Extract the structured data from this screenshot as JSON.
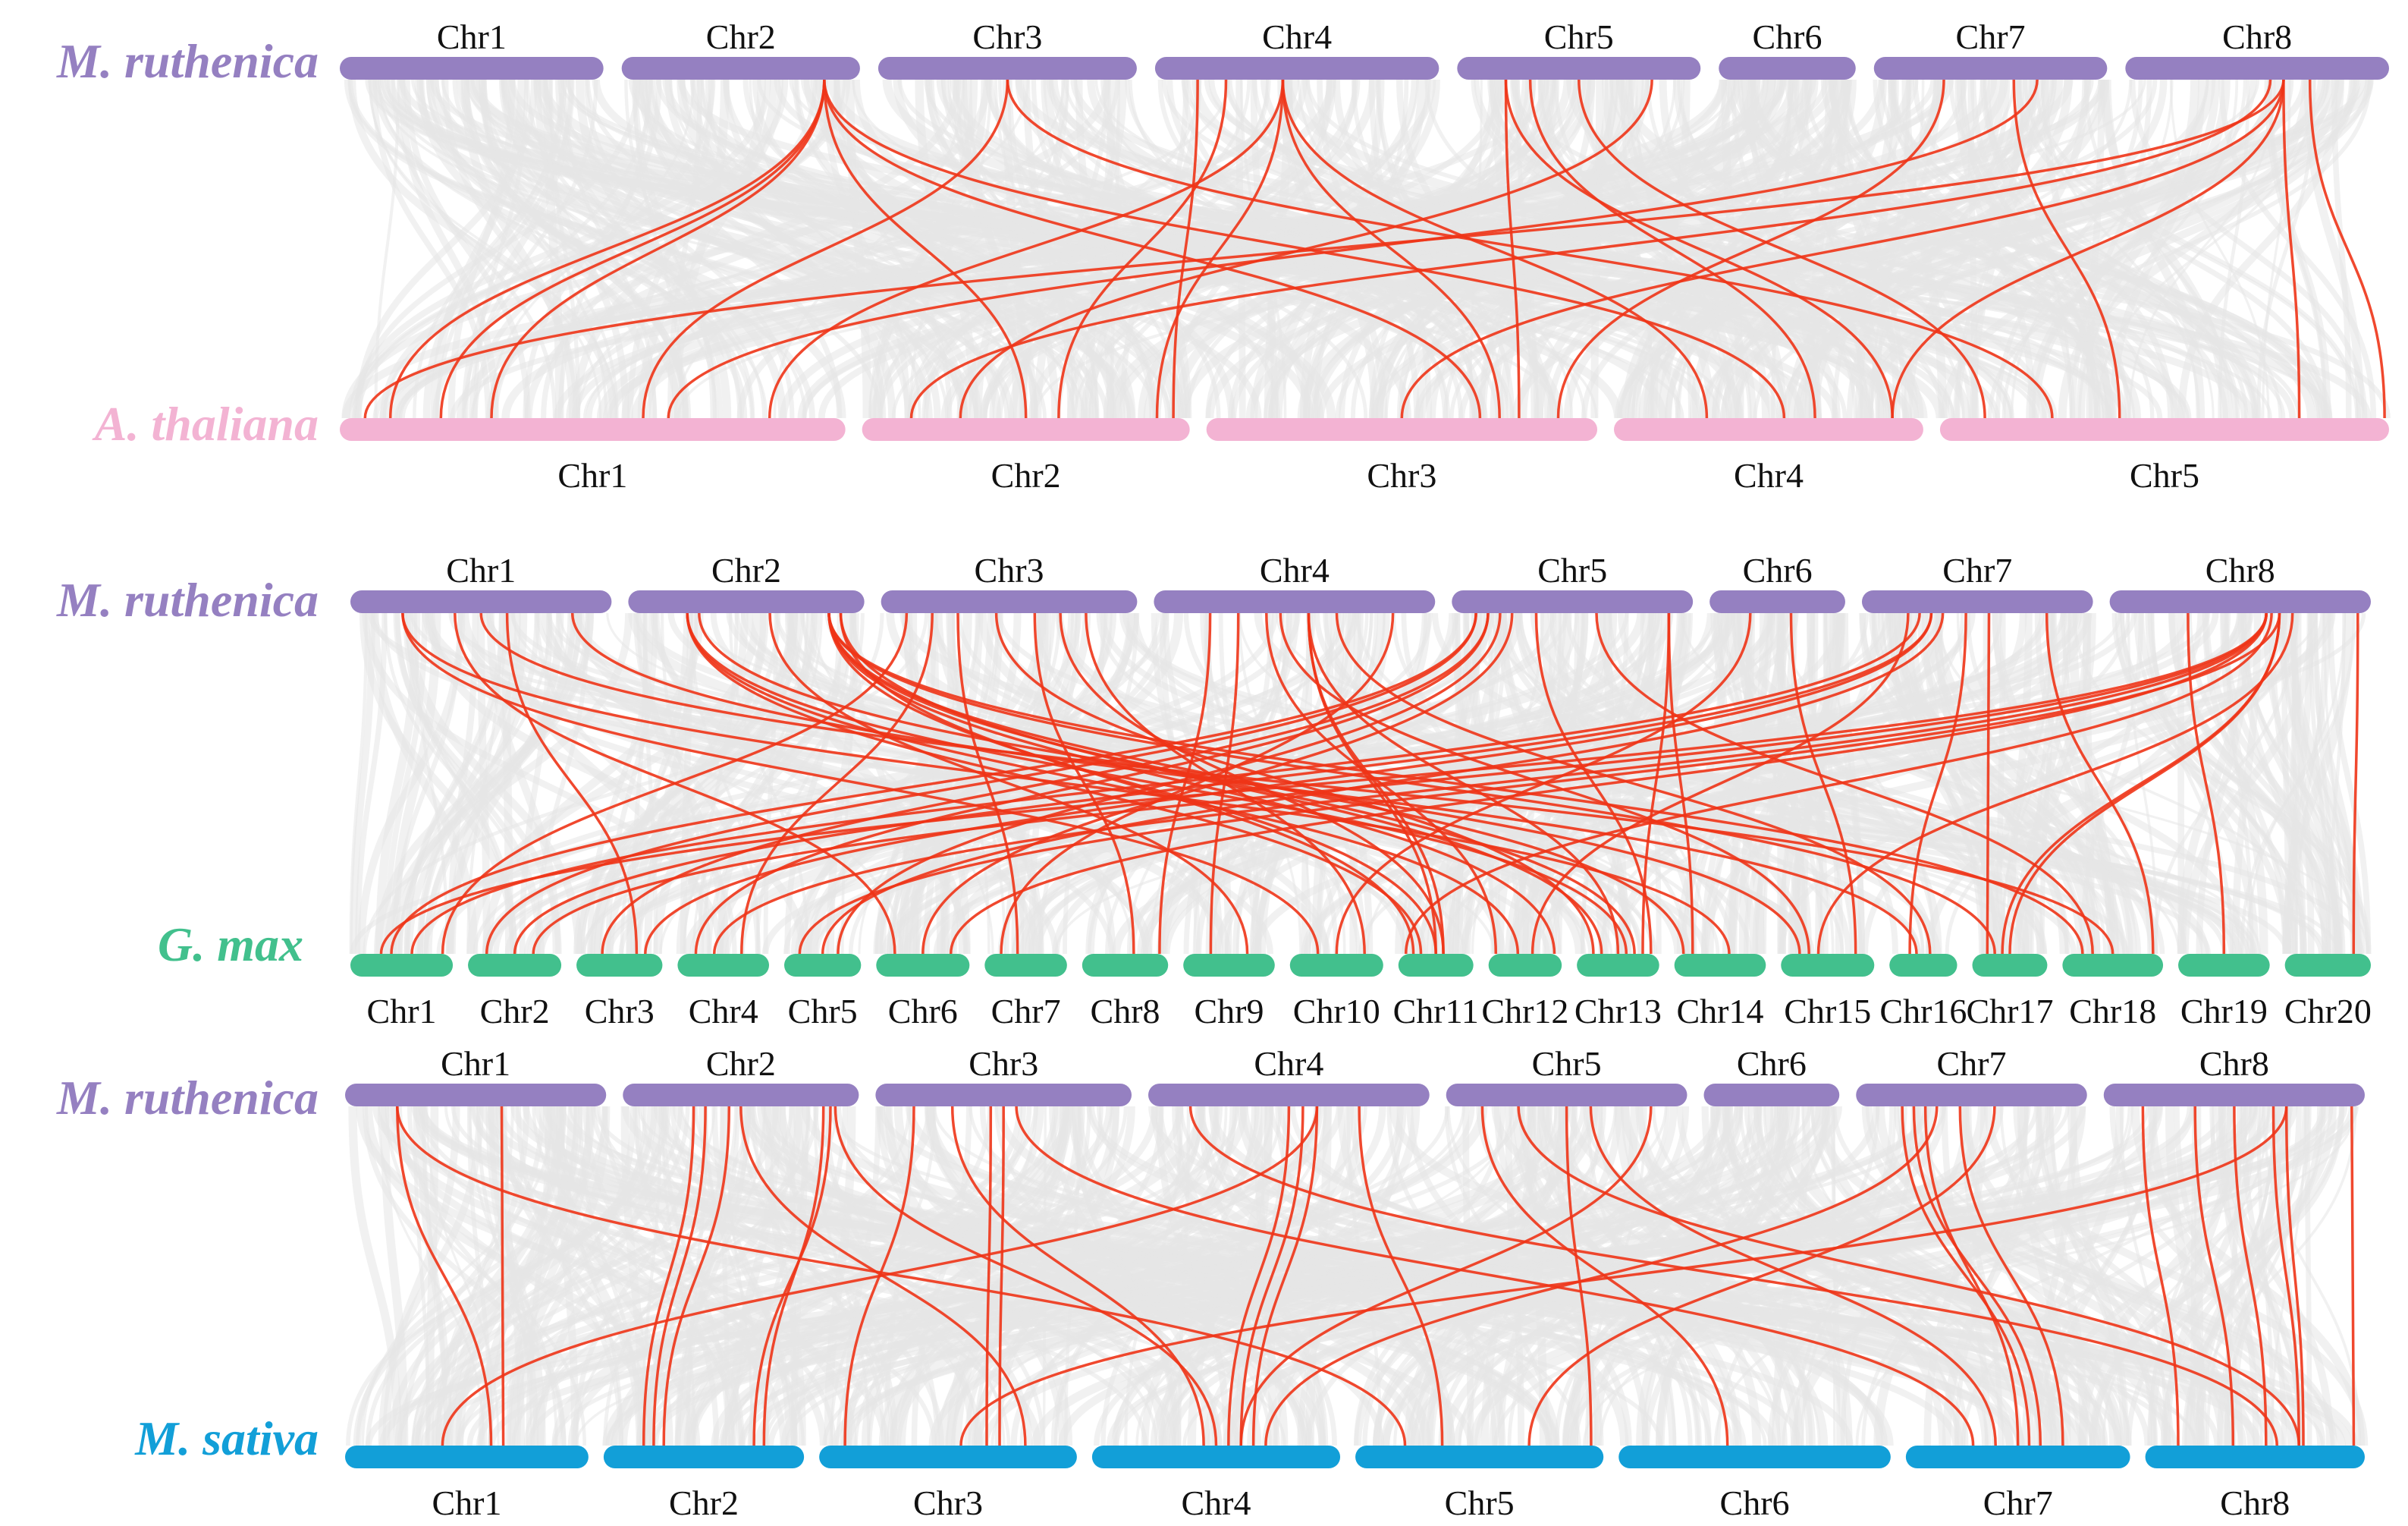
{
  "colors": {
    "background_link": "#e6e6e6",
    "highlight_link": "#ee3417",
    "ruthenica": "#9580c1",
    "thaliana": "#f3b3d3",
    "gmax": "#42c08d",
    "sativa": "#129fd8"
  },
  "panels": [
    {
      "top": {
        "species": "M. ruthenica",
        "color": "#9580c1",
        "chromosomes": [
          "Chr1",
          "Chr2",
          "Chr3",
          "Chr4",
          "Chr5",
          "Chr6",
          "Chr7",
          "Chr8"
        ],
        "lengths": [
          52,
          47,
          51,
          56,
          48,
          27,
          46,
          52
        ]
      },
      "bottom": {
        "species": "A.  thaliana",
        "color": "#f3b3d3",
        "chromosomes": [
          "Chr1",
          "Chr2",
          "Chr3",
          "Chr4",
          "Chr5"
        ],
        "lengths": [
          30.4,
          19.7,
          23.5,
          18.6,
          27.0
        ]
      },
      "links": [
        [
          1,
          0.85,
          0,
          0.1
        ],
        [
          1,
          0.85,
          0,
          0.3
        ],
        [
          1,
          0.85,
          1,
          0.5
        ],
        [
          1,
          0.85,
          2,
          0.7
        ],
        [
          1,
          0.85,
          3,
          0.55
        ],
        [
          1,
          0.85,
          0,
          0.2
        ],
        [
          2,
          0.5,
          0,
          0.6
        ],
        [
          2,
          0.5,
          4,
          0.25
        ],
        [
          3,
          0.15,
          1,
          0.95
        ],
        [
          3,
          0.25,
          1,
          0.6
        ],
        [
          3,
          0.45,
          0,
          0.85
        ],
        [
          3,
          0.45,
          2,
          0.75
        ],
        [
          3,
          0.45,
          3,
          0.3
        ],
        [
          3,
          0.45,
          1,
          0.9
        ],
        [
          4,
          0.2,
          2,
          0.8
        ],
        [
          4,
          0.2,
          3,
          0.9
        ],
        [
          4,
          0.8,
          1,
          0.3
        ],
        [
          4,
          0.5,
          4,
          0.1
        ],
        [
          4,
          0.3,
          3,
          0.65
        ],
        [
          6,
          0.3,
          2,
          0.9
        ],
        [
          6,
          0.7,
          0,
          0.65
        ],
        [
          6,
          0.6,
          4,
          0.4
        ],
        [
          7,
          0.6,
          0,
          0.05
        ],
        [
          7,
          0.6,
          2,
          0.5
        ],
        [
          7,
          0.6,
          3,
          0.9
        ],
        [
          7,
          0.6,
          4,
          0.8
        ],
        [
          7,
          0.7,
          4,
          0.99
        ],
        [
          7,
          0.55,
          1,
          0.15
        ]
      ]
    },
    {
      "top": {
        "species": "M. ruthenica",
        "color": "#9580c1",
        "chromosomes": [
          "Chr1",
          "Chr2",
          "Chr3",
          "Chr4",
          "Chr5",
          "Chr6",
          "Chr7",
          "Chr8"
        ],
        "lengths": [
          52,
          47,
          51,
          56,
          48,
          27,
          46,
          52
        ]
      },
      "bottom": {
        "species": "G. max",
        "color": "#42c08d",
        "chromosomes": [
          "Chr1",
          "Chr2",
          "Chr3",
          "Chr4",
          "Chr5",
          "Chr6",
          "Chr7",
          "Chr8",
          "Chr9",
          "Chr10",
          "Chr11",
          "Chr12",
          "Chr13",
          "Chr14",
          "Chr15",
          "Chr16",
          "Chr17",
          "Chr18",
          "Chr19",
          "Chr20"
        ],
        "lengths": [
          56,
          51,
          47,
          50,
          42,
          51,
          45,
          47,
          50,
          51,
          41,
          40,
          45,
          50,
          51,
          37,
          41,
          55,
          50,
          47
        ]
      },
      "links": [
        [
          0,
          0.2,
          9,
          0.3
        ],
        [
          0,
          0.2,
          13,
          0.6
        ],
        [
          0,
          0.4,
          5,
          0.2
        ],
        [
          0,
          0.6,
          2,
          0.7
        ],
        [
          0,
          0.85,
          15,
          0.4
        ],
        [
          0,
          0.5,
          17,
          0.5
        ],
        [
          1,
          0.25,
          10,
          0.3
        ],
        [
          1,
          0.25,
          11,
          0.4
        ],
        [
          1,
          0.25,
          12,
          0.6
        ],
        [
          1,
          0.3,
          14,
          0.2
        ],
        [
          1,
          0.6,
          8,
          0.7
        ],
        [
          1,
          0.85,
          10,
          0.5
        ],
        [
          1,
          0.85,
          11,
          0.9
        ],
        [
          1,
          0.85,
          12,
          0.7
        ],
        [
          1,
          0.85,
          13,
          0.1
        ],
        [
          1,
          0.85,
          16,
          0.3
        ],
        [
          1,
          0.85,
          17,
          0.2
        ],
        [
          1,
          0.9,
          10,
          0.2
        ],
        [
          1,
          0.9,
          12,
          0.3
        ],
        [
          2,
          0.1,
          0,
          0.9
        ],
        [
          2,
          0.2,
          3,
          0.7
        ],
        [
          2,
          0.3,
          6,
          0.4
        ],
        [
          2,
          0.6,
          7,
          0.6
        ],
        [
          2,
          0.8,
          9,
          0.8
        ],
        [
          2,
          0.45,
          12,
          0.2
        ],
        [
          2,
          0.7,
          10,
          0.6
        ],
        [
          3,
          0.2,
          7,
          0.9
        ],
        [
          3,
          0.4,
          11,
          0.1
        ],
        [
          3,
          0.55,
          10,
          0.5
        ],
        [
          3,
          0.55,
          10,
          0.6
        ],
        [
          3,
          0.55,
          12,
          0.5
        ],
        [
          3,
          0.45,
          14,
          0.3
        ],
        [
          3,
          0.65,
          15,
          0.6
        ],
        [
          3,
          0.85,
          6,
          0.2
        ],
        [
          3,
          0.3,
          8,
          0.3
        ],
        [
          4,
          0.1,
          0,
          0.4
        ],
        [
          4,
          0.1,
          1,
          0.2
        ],
        [
          4,
          0.15,
          2,
          0.3
        ],
        [
          4,
          0.2,
          4,
          0.7
        ],
        [
          4,
          0.25,
          5,
          0.5
        ],
        [
          4,
          0.35,
          12,
          0.9
        ],
        [
          4,
          0.6,
          17,
          0.3
        ],
        [
          4,
          0.9,
          13,
          0.2
        ],
        [
          4,
          0.9,
          12,
          0.8
        ],
        [
          4,
          0.15,
          3,
          0.2
        ],
        [
          5,
          0.6,
          14,
          0.8
        ],
        [
          5,
          0.3,
          9,
          0.5
        ],
        [
          6,
          0.25,
          0,
          0.6
        ],
        [
          6,
          0.3,
          1,
          0.5
        ],
        [
          6,
          0.3,
          2,
          0.8
        ],
        [
          6,
          0.45,
          15,
          0.3
        ],
        [
          6,
          0.55,
          16,
          0.2
        ],
        [
          6,
          0.8,
          17,
          0.9
        ],
        [
          6,
          0.2,
          11,
          0.6
        ],
        [
          6,
          0.35,
          4,
          0.5
        ],
        [
          7,
          0.6,
          0,
          0.3
        ],
        [
          7,
          0.6,
          1,
          0.7
        ],
        [
          7,
          0.6,
          3,
          0.4
        ],
        [
          7,
          0.6,
          5,
          0.8
        ],
        [
          7,
          0.65,
          4,
          0.2
        ],
        [
          7,
          0.65,
          16,
          0.4
        ],
        [
          7,
          0.65,
          16,
          0.5
        ],
        [
          7,
          0.3,
          18,
          0.5
        ],
        [
          7,
          0.95,
          19,
          0.8
        ],
        [
          7,
          0.7,
          14,
          0.4
        ],
        [
          7,
          0.62,
          10,
          0.1
        ]
      ]
    },
    {
      "top": {
        "species": "M. ruthenica",
        "color": "#9580c1",
        "chromosomes": [
          "Chr1",
          "Chr2",
          "Chr3",
          "Chr4",
          "Chr5",
          "Chr6",
          "Chr7",
          "Chr8"
        ],
        "lengths": [
          52,
          47,
          51,
          56,
          48,
          27,
          46,
          52
        ]
      },
      "bottom": {
        "species": "M. sativa",
        "color": "#129fd8",
        "chromosomes": [
          "Chr1",
          "Chr2",
          "Chr3",
          "Chr4",
          "Chr5",
          "Chr6",
          "Chr7",
          "Chr8"
        ],
        "lengths": [
          51,
          42,
          54,
          52,
          52,
          57,
          47,
          46
        ]
      },
      "links": [
        [
          0,
          0.2,
          0,
          0.6
        ],
        [
          0,
          0.6,
          0,
          0.65
        ],
        [
          0,
          0.2,
          4,
          0.2
        ],
        [
          1,
          0.3,
          1,
          0.2
        ],
        [
          1,
          0.35,
          1,
          0.25
        ],
        [
          1,
          0.45,
          1,
          0.3
        ],
        [
          1,
          0.85,
          1,
          0.8
        ],
        [
          1,
          0.88,
          1,
          0.75
        ],
        [
          1,
          0.9,
          3,
          0.5
        ],
        [
          1,
          0.5,
          2,
          0.8
        ],
        [
          2,
          0.15,
          2,
          0.1
        ],
        [
          2,
          0.45,
          2,
          0.65
        ],
        [
          2,
          0.5,
          2,
          0.7
        ],
        [
          2,
          0.3,
          3,
          0.45
        ],
        [
          2,
          0.55,
          6,
          0.3
        ],
        [
          3,
          0.15,
          7,
          0.6
        ],
        [
          3,
          0.5,
          3,
          0.55
        ],
        [
          3,
          0.55,
          3,
          0.6
        ],
        [
          3,
          0.6,
          3,
          0.65
        ],
        [
          3,
          0.6,
          0,
          0.4
        ],
        [
          3,
          0.75,
          4,
          0.35
        ],
        [
          4,
          0.15,
          5,
          0.4
        ],
        [
          4,
          0.3,
          7,
          0.7
        ],
        [
          4,
          0.5,
          4,
          0.95
        ],
        [
          4,
          0.85,
          3,
          0.6
        ],
        [
          4,
          0.6,
          6,
          0.4
        ],
        [
          6,
          0.2,
          6,
          0.55
        ],
        [
          6,
          0.25,
          6,
          0.6
        ],
        [
          6,
          0.3,
          6,
          0.5
        ],
        [
          6,
          0.35,
          3,
          0.7
        ],
        [
          6,
          0.45,
          6,
          0.7
        ],
        [
          6,
          0.6,
          4,
          0.7
        ],
        [
          7,
          0.15,
          7,
          0.15
        ],
        [
          7,
          0.35,
          7,
          0.4
        ],
        [
          7,
          0.5,
          7,
          0.55
        ],
        [
          7,
          0.65,
          7,
          0.7
        ],
        [
          7,
          0.7,
          7,
          0.72
        ],
        [
          7,
          0.95,
          7,
          0.95
        ],
        [
          7,
          0.7,
          2,
          0.55
        ]
      ]
    }
  ]
}
